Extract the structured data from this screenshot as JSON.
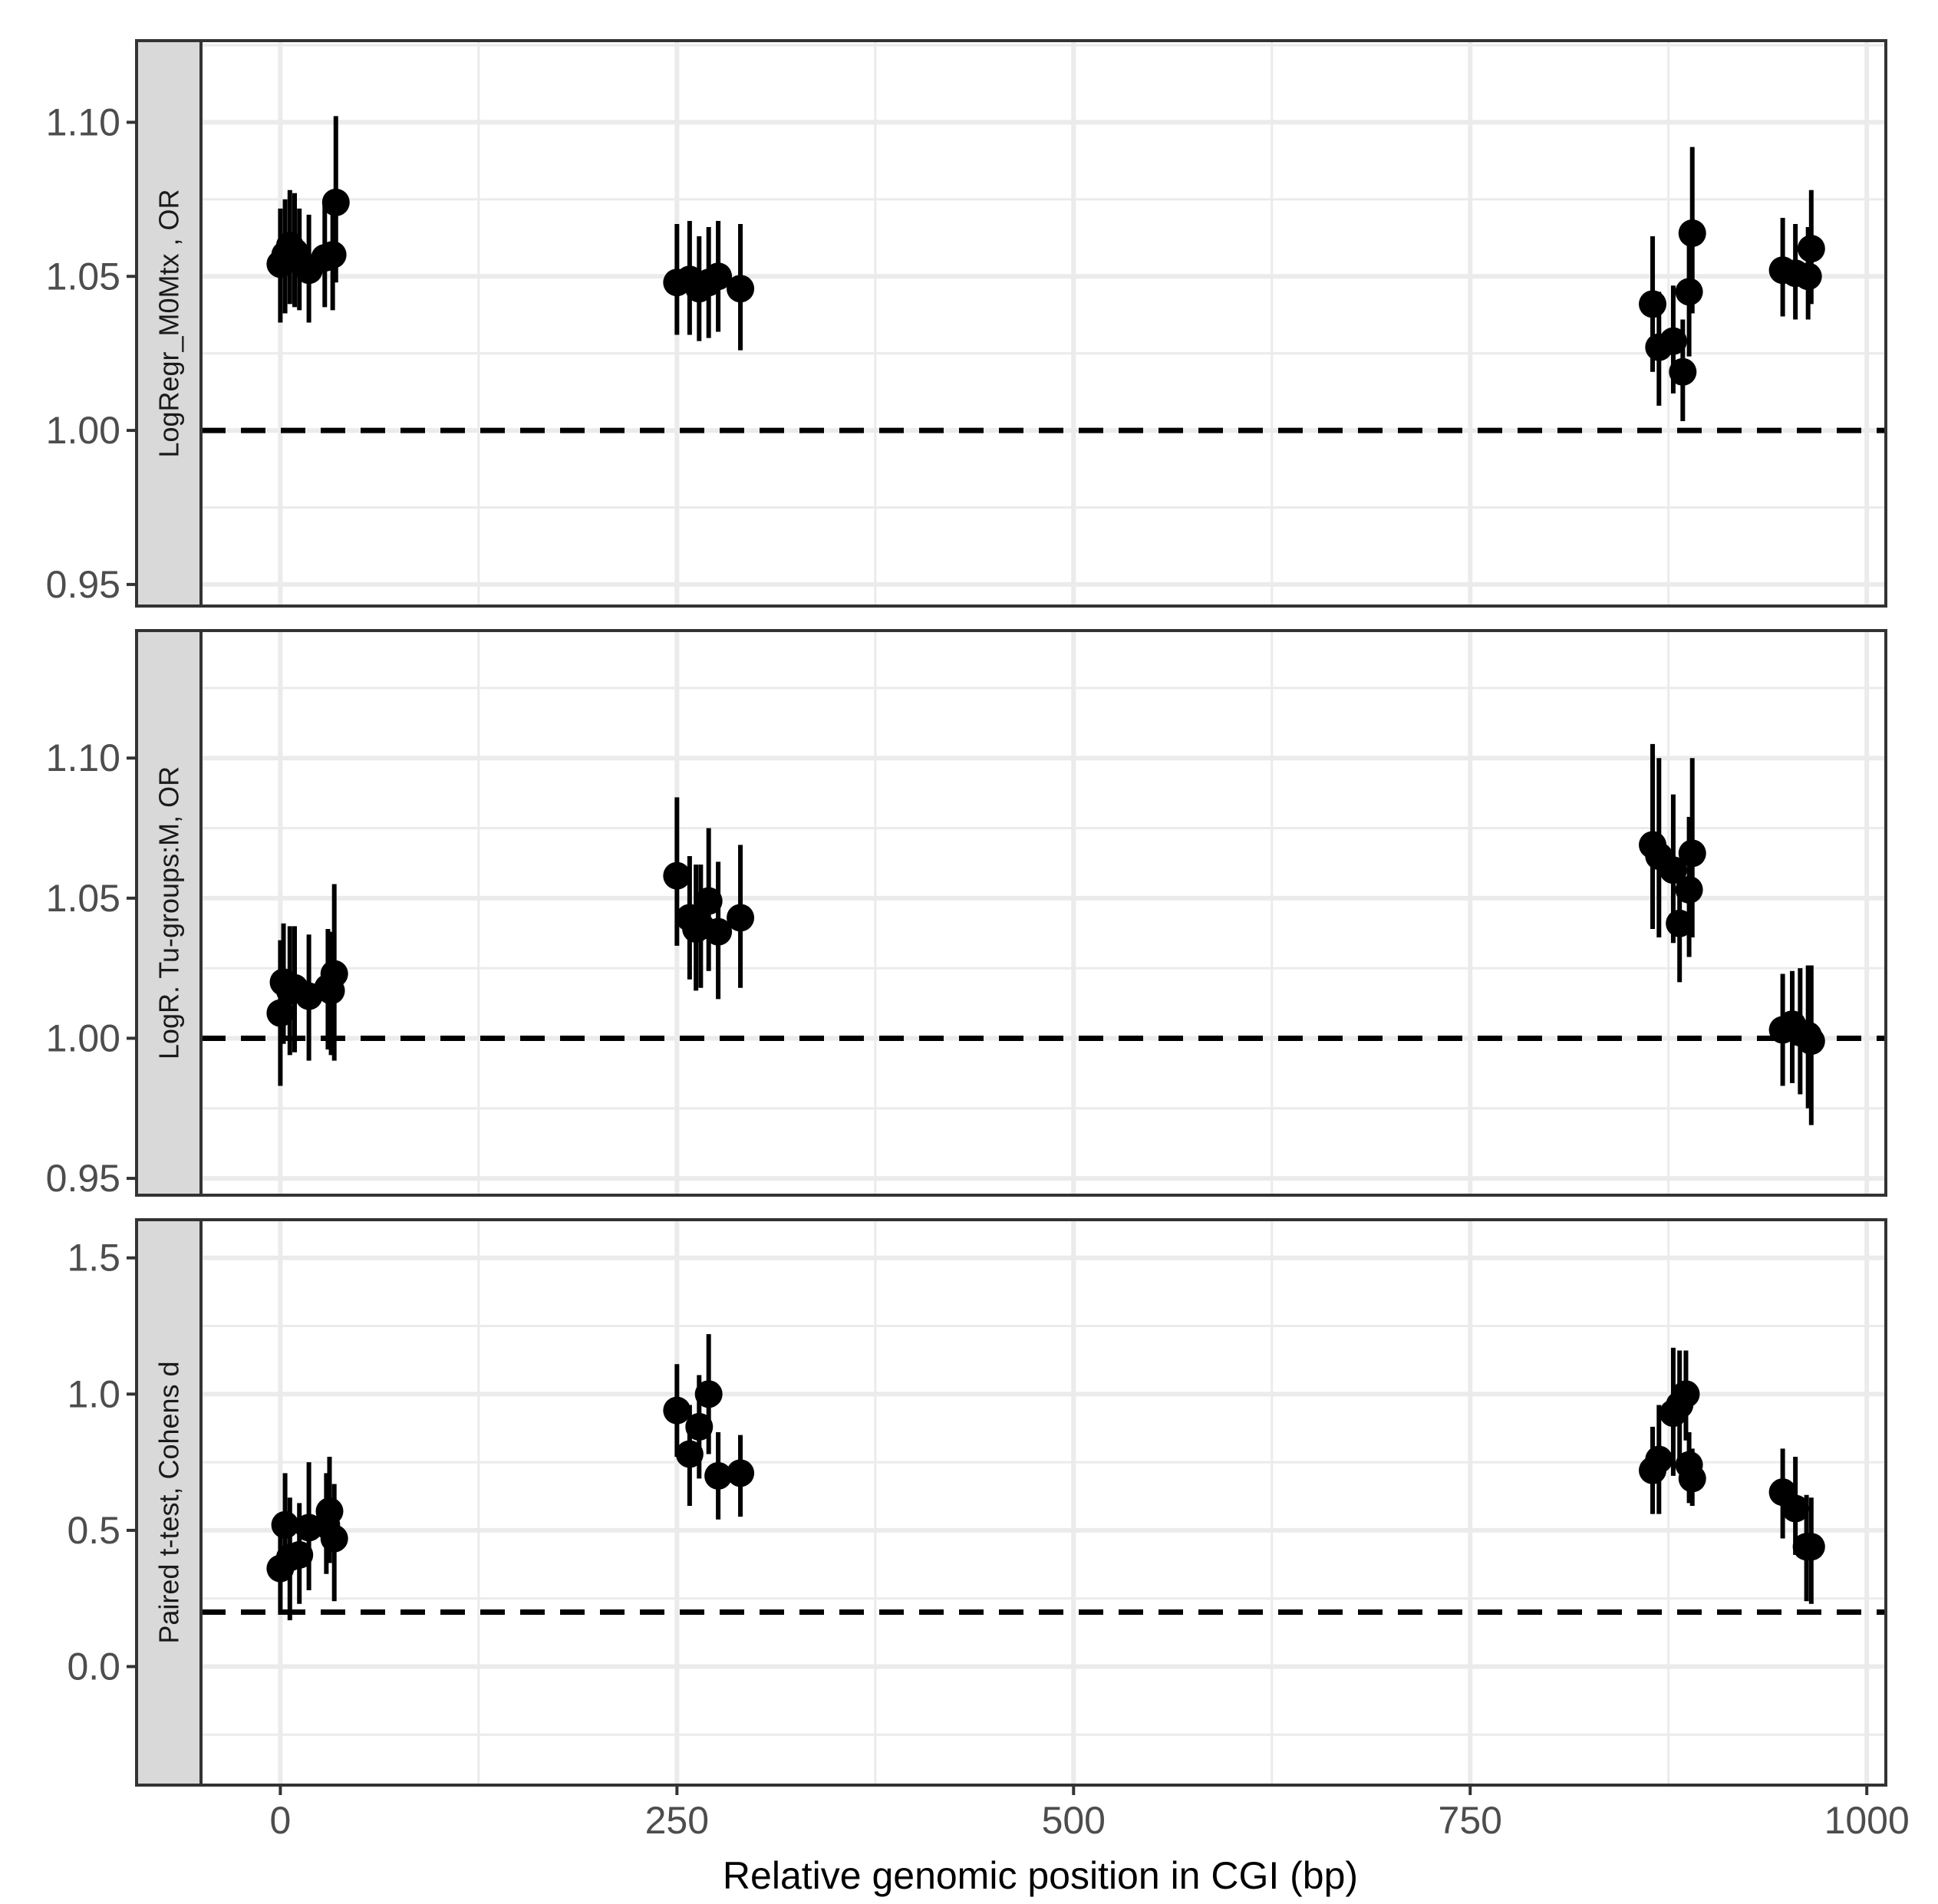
{
  "chart_data": {
    "type": "scatter",
    "xlabel": "Relative genomic position in CGI (bp)",
    "xlim": [
      -50,
      1012
    ],
    "x_ticks": [
      0,
      250,
      500,
      750,
      1000
    ],
    "x_tick_labels": [
      "0",
      "250",
      "500",
      "750",
      "1000"
    ],
    "grid": true,
    "colors": {
      "points": "#000000",
      "grid": "#ebebeb",
      "strip": "#d9d9d9",
      "border": "#333333"
    },
    "panels": [
      {
        "strip_label": "LogRegr_M0Mtx , OR",
        "ylim": [
          0.943,
          1.1265
        ],
        "y_ticks": [
          0.95,
          1.0,
          1.05,
          1.1
        ],
        "y_tick_labels": [
          "0.95",
          "1.00",
          "1.05",
          "1.10"
        ],
        "reference_line": 1.0,
        "points": [
          {
            "x": 0,
            "y": 1.054,
            "lo": 1.035,
            "hi": 1.072
          },
          {
            "x": 3,
            "y": 1.057,
            "lo": 1.038,
            "hi": 1.075
          },
          {
            "x": 6,
            "y": 1.06,
            "lo": 1.041,
            "hi": 1.078
          },
          {
            "x": 9,
            "y": 1.058,
            "lo": 1.04,
            "hi": 1.077
          },
          {
            "x": 12,
            "y": 1.055,
            "lo": 1.039,
            "hi": 1.072
          },
          {
            "x": 18,
            "y": 1.052,
            "lo": 1.035,
            "hi": 1.07
          },
          {
            "x": 28,
            "y": 1.056,
            "lo": 1.04,
            "hi": 1.073
          },
          {
            "x": 33,
            "y": 1.057,
            "lo": 1.039,
            "hi": 1.075
          },
          {
            "x": 35,
            "y": 1.074,
            "lo": 1.048,
            "hi": 1.102
          },
          {
            "x": 250,
            "y": 1.048,
            "lo": 1.031,
            "hi": 1.067
          },
          {
            "x": 258,
            "y": 1.049,
            "lo": 1.031,
            "hi": 1.068
          },
          {
            "x": 264,
            "y": 1.046,
            "lo": 1.029,
            "hi": 1.063
          },
          {
            "x": 270,
            "y": 1.048,
            "lo": 1.03,
            "hi": 1.066
          },
          {
            "x": 276,
            "y": 1.05,
            "lo": 1.032,
            "hi": 1.068
          },
          {
            "x": 290,
            "y": 1.046,
            "lo": 1.026,
            "hi": 1.067
          },
          {
            "x": 865,
            "y": 1.041,
            "lo": 1.019,
            "hi": 1.063
          },
          {
            "x": 869,
            "y": 1.027,
            "lo": 1.008,
            "hi": 1.045
          },
          {
            "x": 878,
            "y": 1.029,
            "lo": 1.012,
            "hi": 1.047
          },
          {
            "x": 884,
            "y": 1.019,
            "lo": 1.003,
            "hi": 1.036
          },
          {
            "x": 888,
            "y": 1.045,
            "lo": 1.024,
            "hi": 1.067
          },
          {
            "x": 890,
            "y": 1.064,
            "lo": 1.038,
            "hi": 1.092
          },
          {
            "x": 947,
            "y": 1.052,
            "lo": 1.037,
            "hi": 1.069
          },
          {
            "x": 955,
            "y": 1.051,
            "lo": 1.036,
            "hi": 1.067
          },
          {
            "x": 963,
            "y": 1.05,
            "lo": 1.036,
            "hi": 1.066
          },
          {
            "x": 965,
            "y": 1.059,
            "lo": 1.041,
            "hi": 1.078
          }
        ]
      },
      {
        "strip_label": "LogR. Tu-groups:M, OR",
        "ylim": [
          0.944,
          1.1455
        ],
        "y_ticks": [
          0.95,
          1.0,
          1.05,
          1.1
        ],
        "y_tick_labels": [
          "0.95",
          "1.00",
          "1.05",
          "1.10"
        ],
        "reference_line": 1.0,
        "points": [
          {
            "x": 0,
            "y": 1.009,
            "lo": 0.983,
            "hi": 1.035
          },
          {
            "x": 2,
            "y": 1.02,
            "lo": 0.998,
            "hi": 1.041
          },
          {
            "x": 6,
            "y": 1.017,
            "lo": 0.994,
            "hi": 1.04
          },
          {
            "x": 9,
            "y": 1.018,
            "lo": 0.995,
            "hi": 1.04
          },
          {
            "x": 18,
            "y": 1.015,
            "lo": 0.992,
            "hi": 1.037
          },
          {
            "x": 30,
            "y": 1.018,
            "lo": 0.996,
            "hi": 1.039
          },
          {
            "x": 32,
            "y": 1.017,
            "lo": 0.994,
            "hi": 1.038
          },
          {
            "x": 34,
            "y": 1.023,
            "lo": 0.992,
            "hi": 1.055
          },
          {
            "x": 250,
            "y": 1.058,
            "lo": 1.033,
            "hi": 1.086
          },
          {
            "x": 258,
            "y": 1.043,
            "lo": 1.021,
            "hi": 1.065
          },
          {
            "x": 262,
            "y": 1.039,
            "lo": 1.017,
            "hi": 1.062
          },
          {
            "x": 265,
            "y": 1.04,
            "lo": 1.018,
            "hi": 1.062
          },
          {
            "x": 270,
            "y": 1.049,
            "lo": 1.024,
            "hi": 1.075
          },
          {
            "x": 276,
            "y": 1.038,
            "lo": 1.014,
            "hi": 1.063
          },
          {
            "x": 290,
            "y": 1.043,
            "lo": 1.018,
            "hi": 1.069
          },
          {
            "x": 865,
            "y": 1.069,
            "lo": 1.039,
            "hi": 1.105
          },
          {
            "x": 869,
            "y": 1.065,
            "lo": 1.036,
            "hi": 1.1
          },
          {
            "x": 878,
            "y": 1.06,
            "lo": 1.034,
            "hi": 1.087
          },
          {
            "x": 882,
            "y": 1.041,
            "lo": 1.02,
            "hi": 1.064
          },
          {
            "x": 888,
            "y": 1.053,
            "lo": 1.029,
            "hi": 1.079
          },
          {
            "x": 890,
            "y": 1.066,
            "lo": 1.036,
            "hi": 1.1
          },
          {
            "x": 947,
            "y": 1.003,
            "lo": 0.983,
            "hi": 1.023
          },
          {
            "x": 953,
            "y": 1.005,
            "lo": 0.984,
            "hi": 1.024
          },
          {
            "x": 958,
            "y": 1.002,
            "lo": 0.98,
            "hi": 1.025
          },
          {
            "x": 963,
            "y": 1.001,
            "lo": 0.975,
            "hi": 1.026
          },
          {
            "x": 965,
            "y": 0.999,
            "lo": 0.969,
            "hi": 1.026
          }
        ]
      },
      {
        "strip_label": "Paired t-test, Cohens d",
        "ylim": [
          -0.435,
          1.64
        ],
        "y_ticks": [
          0.0,
          0.5,
          1.0,
          1.5
        ],
        "y_tick_labels": [
          "0.0",
          "0.5",
          "1.0",
          "1.5"
        ],
        "reference_line": 0.2,
        "points": [
          {
            "x": 0,
            "y": 0.36,
            "lo": 0.19,
            "hi": 0.52
          },
          {
            "x": 3,
            "y": 0.52,
            "lo": 0.32,
            "hi": 0.71
          },
          {
            "x": 6,
            "y": 0.4,
            "lo": 0.17,
            "hi": 0.62
          },
          {
            "x": 12,
            "y": 0.41,
            "lo": 0.23,
            "hi": 0.6
          },
          {
            "x": 18,
            "y": 0.51,
            "lo": 0.28,
            "hi": 0.75
          },
          {
            "x": 29,
            "y": 0.52,
            "lo": 0.34,
            "hi": 0.71
          },
          {
            "x": 31,
            "y": 0.57,
            "lo": 0.38,
            "hi": 0.77
          },
          {
            "x": 34,
            "y": 0.47,
            "lo": 0.24,
            "hi": 0.67
          },
          {
            "x": 250,
            "y": 0.94,
            "lo": 0.77,
            "hi": 1.11
          },
          {
            "x": 258,
            "y": 0.78,
            "lo": 0.59,
            "hi": 0.96
          },
          {
            "x": 264,
            "y": 0.88,
            "lo": 0.69,
            "hi": 1.07
          },
          {
            "x": 270,
            "y": 1.0,
            "lo": 0.78,
            "hi": 1.22
          },
          {
            "x": 276,
            "y": 0.7,
            "lo": 0.54,
            "hi": 0.86
          },
          {
            "x": 290,
            "y": 0.71,
            "lo": 0.55,
            "hi": 0.85
          },
          {
            "x": 865,
            "y": 0.72,
            "lo": 0.56,
            "hi": 0.88
          },
          {
            "x": 869,
            "y": 0.76,
            "lo": 0.56,
            "hi": 0.96
          },
          {
            "x": 878,
            "y": 0.93,
            "lo": 0.7,
            "hi": 1.17
          },
          {
            "x": 882,
            "y": 0.96,
            "lo": 0.75,
            "hi": 1.16
          },
          {
            "x": 886,
            "y": 1.0,
            "lo": 0.83,
            "hi": 1.16
          },
          {
            "x": 888,
            "y": 0.74,
            "lo": 0.6,
            "hi": 0.86
          },
          {
            "x": 890,
            "y": 0.69,
            "lo": 0.59,
            "hi": 0.8
          },
          {
            "x": 947,
            "y": 0.64,
            "lo": 0.47,
            "hi": 0.8
          },
          {
            "x": 955,
            "y": 0.58,
            "lo": 0.41,
            "hi": 0.77
          },
          {
            "x": 962,
            "y": 0.44,
            "lo": 0.24,
            "hi": 0.63
          },
          {
            "x": 965,
            "y": 0.44,
            "lo": 0.23,
            "hi": 0.62
          }
        ]
      }
    ]
  }
}
